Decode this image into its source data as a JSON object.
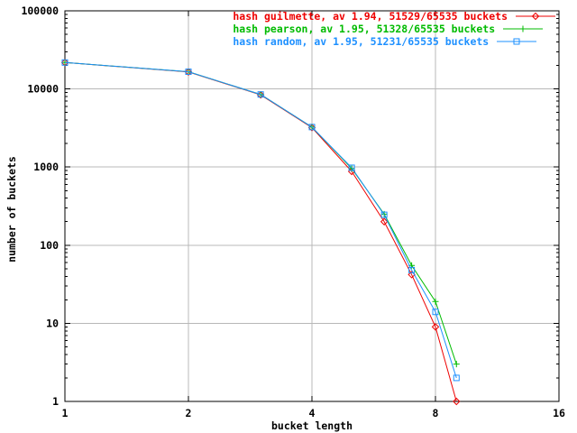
{
  "chart_data": {
    "type": "line",
    "title": "",
    "xlabel": "bucket length",
    "ylabel": "number of buckets",
    "x_scale": "log2",
    "y_scale": "log10",
    "xlim": [
      1,
      16
    ],
    "ylim": [
      1,
      100000
    ],
    "x_ticks": [
      1,
      2,
      4,
      8,
      16
    ],
    "x_tick_labels": [
      "1",
      "2",
      "4",
      "8",
      "16"
    ],
    "y_ticks": [
      1,
      10,
      100,
      1000,
      10000,
      100000
    ],
    "y_tick_labels": [
      "1",
      "10",
      "100",
      "1000",
      "10000",
      "100000"
    ],
    "grid": true,
    "legend_position": "top-right-inside",
    "x": [
      1,
      2,
      3,
      4,
      5,
      6,
      7,
      8,
      9
    ],
    "series": [
      {
        "name": "hash guilmette, av 1.94, 51529/65535 buckets",
        "color": "#ee0000",
        "marker": "diamond",
        "values": [
          21800,
          16500,
          8400,
          3200,
          880,
          200,
          42,
          9,
          1
        ]
      },
      {
        "name": "hash pearson, av 1.95, 51328/65535 buckets",
        "color": "#00bb00",
        "marker": "plus",
        "values": [
          21800,
          16600,
          8500,
          3250,
          960,
          250,
          55,
          19,
          3
        ]
      },
      {
        "name": "hash random, av 1.95, 51231/65535 buckets",
        "color": "#1e90ff",
        "marker": "square",
        "values": [
          21800,
          16600,
          8500,
          3250,
          980,
          245,
          48,
          14,
          2
        ]
      }
    ],
    "colors": {
      "background": "#ffffff",
      "frame": "#000000",
      "grid": "#b8b8b8",
      "text": "#000000"
    }
  }
}
